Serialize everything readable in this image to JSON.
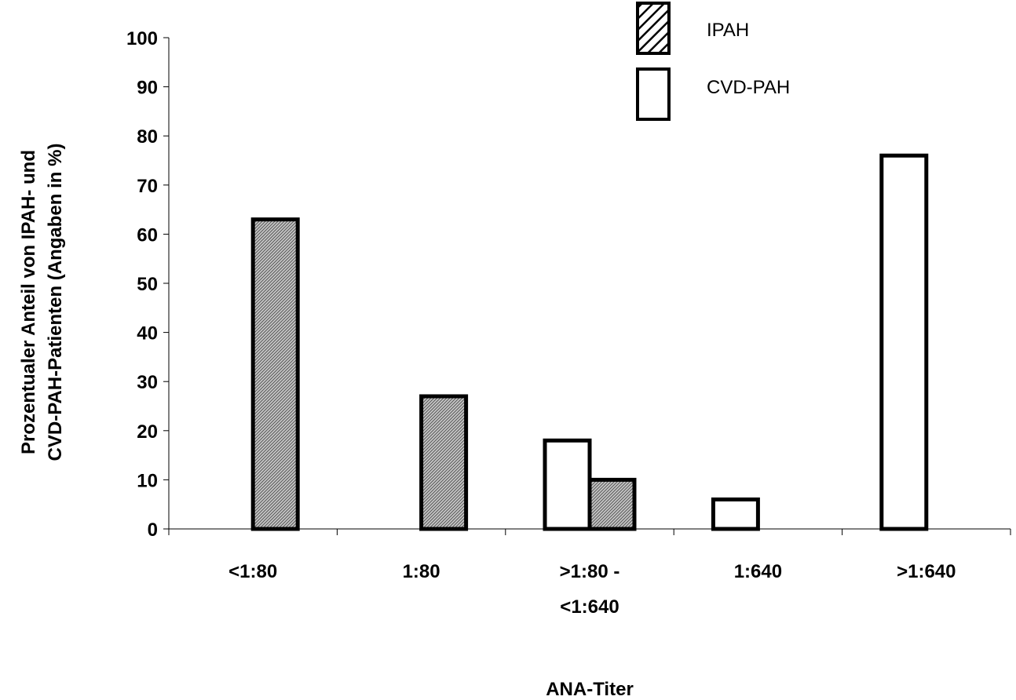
{
  "chart_data": {
    "type": "bar",
    "categories": [
      "<1:80",
      "1:80",
      ">1:80 - <1:640",
      "1:640",
      ">1:640"
    ],
    "category_label_lines": [
      [
        "<1:80"
      ],
      [
        "1:80"
      ],
      [
        ">1:80 -",
        "<1:640"
      ],
      [
        "1:640"
      ],
      [
        ">1:640"
      ]
    ],
    "series": [
      {
        "name": "CVD-PAH",
        "values": [
          0,
          0,
          18,
          6,
          76
        ],
        "fill": "#ffffff",
        "pattern": "none"
      },
      {
        "name": "IPAH",
        "values": [
          63,
          27,
          10,
          0,
          0
        ],
        "fill": "#c8c8c8",
        "pattern": "hatched"
      }
    ],
    "title": "",
    "xlabel": "ANA-Titer",
    "ylabel_lines": [
      "Prozentualer Anteil von IPAH- und",
      "CVD-PAH-Patienten (Angaben in %)"
    ],
    "ylim": [
      0,
      100
    ],
    "yticks": [
      0,
      10,
      20,
      30,
      40,
      50,
      60,
      70,
      80,
      90,
      100
    ],
    "grid": false,
    "legend": {
      "position": "top-right",
      "entries": [
        {
          "label": "IPAH",
          "series": "IPAH"
        },
        {
          "label": "CVD-PAH",
          "series": "CVD-PAH"
        }
      ]
    },
    "colors": {
      "stroke": "#000000",
      "ipah_fill": "#c8c8c8",
      "ipah_hatch": "#555555",
      "cvd_fill": "#ffffff"
    }
  }
}
